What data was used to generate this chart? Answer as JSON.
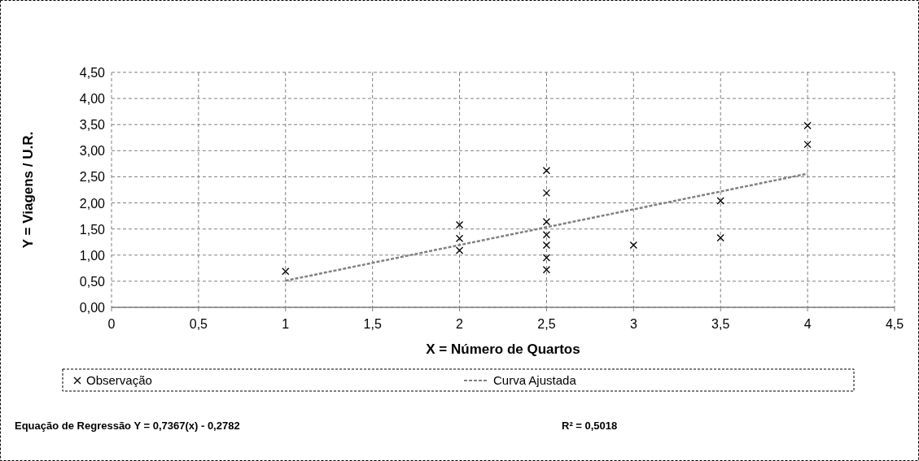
{
  "chart_data": {
    "type": "scatter",
    "xlabel": "X = Número de Quartos",
    "ylabel": "Y = Viagens / U.R.",
    "xlim": [
      0,
      4.5
    ],
    "xticks": [
      0,
      {
        "value": 0.5,
        "label": "0,5"
      },
      1,
      {
        "value": 1.5,
        "label": "1,5"
      },
      2,
      {
        "value": 2.5,
        "label": "2,5"
      },
      3,
      {
        "value": 3.5,
        "label": "3,5"
      },
      4,
      {
        "value": 4.5,
        "label": "4,5"
      }
    ],
    "ylim": [
      0,
      4.5
    ],
    "yticks": [
      {
        "value": 0,
        "label": "0,00"
      },
      {
        "value": 0.5,
        "label": "0,50"
      },
      {
        "value": 1,
        "label": "1,00"
      },
      {
        "value": 1.5,
        "label": "1,50"
      },
      {
        "value": 2,
        "label": "2,00"
      },
      {
        "value": 2.5,
        "label": "2,50"
      },
      {
        "value": 3,
        "label": "3,00"
      },
      {
        "value": 3.5,
        "label": "3,50"
      },
      {
        "value": 4,
        "label": "4,00"
      },
      {
        "value": 4.5,
        "label": "4,50"
      }
    ],
    "grid": true,
    "legend": "bottom",
    "series": [
      {
        "name": "Observação",
        "color": "#000000",
        "marker": "cross",
        "x": [
          1,
          2,
          2,
          2,
          2.5,
          2.5,
          2.5,
          2.5,
          2.5,
          2.5,
          2.5,
          3,
          3.5,
          3.5,
          4,
          4
        ],
        "values": [
          0.69,
          1.58,
          1.32,
          1.09,
          2.62,
          2.19,
          1.64,
          1.39,
          1.19,
          0.95,
          0.72,
          1.19,
          2.04,
          1.33,
          3.48,
          3.12
        ]
      },
      {
        "name": "Curva Ajustada",
        "type": "line",
        "color": "#808080",
        "line_style": "dashed",
        "marker": "none",
        "x": [
          1,
          4
        ],
        "values": [
          0.51,
          2.56
        ]
      }
    ],
    "annotations": [
      "Equação de Regressão Y = 0,7367(x) - 0,2782",
      "R² = 0,5018"
    ]
  }
}
